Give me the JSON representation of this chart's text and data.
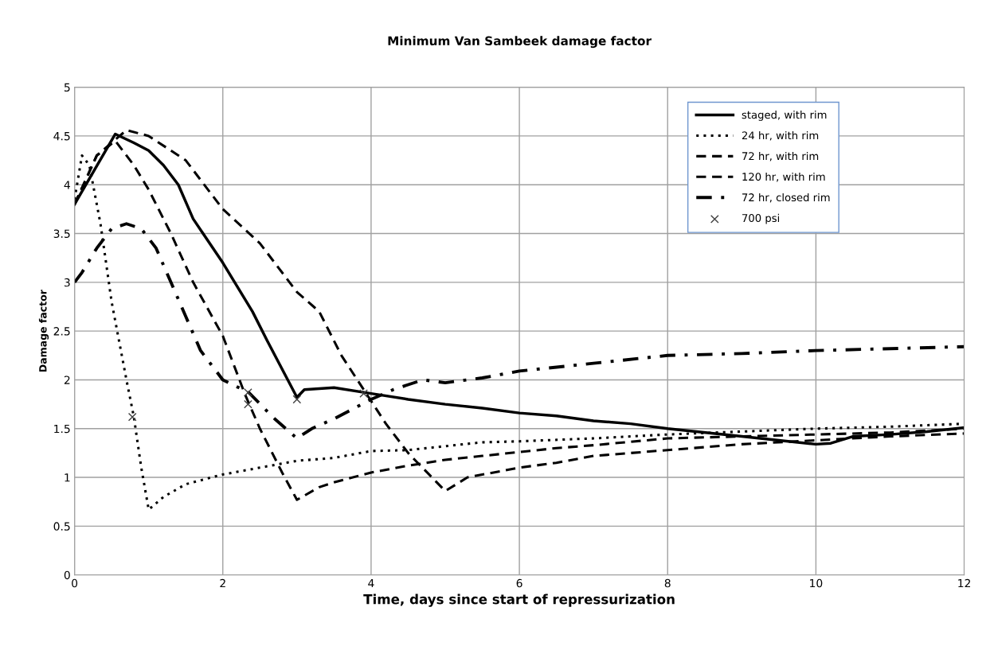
{
  "chart_data": {
    "type": "line",
    "title": "Minimum Van Sambeek damage factor",
    "xlabel": "Time, days since start of repressurization",
    "ylabel": "Damage factor",
    "xlim": [
      0,
      12
    ],
    "xticks": [
      0,
      2,
      4,
      6,
      8,
      10,
      12
    ],
    "ylim": [
      0,
      5
    ],
    "yticks": [
      0,
      0.5,
      1,
      1.5,
      2,
      2.5,
      3,
      3.5,
      4,
      4.5,
      5
    ],
    "grid": true,
    "legend": "top right",
    "series": [
      {
        "name": "staged, with rim",
        "color": "#000000",
        "line_style": "solid",
        "x": [
          0,
          0.55,
          0.8,
          1.0,
          1.2,
          1.4,
          1.6,
          2.0,
          2.4,
          2.6,
          3.0,
          3.1,
          3.5,
          4.0,
          4.5,
          5.0,
          5.5,
          6.0,
          6.5,
          7.0,
          7.5,
          8.0,
          9.0,
          9.5,
          10.0,
          10.2,
          10.5,
          11,
          11.5,
          12
        ],
        "values": [
          3.8,
          4.52,
          4.43,
          4.35,
          4.2,
          4.0,
          3.65,
          3.2,
          2.7,
          2.4,
          1.82,
          1.9,
          1.92,
          1.86,
          1.8,
          1.75,
          1.71,
          1.66,
          1.63,
          1.58,
          1.55,
          1.5,
          1.42,
          1.38,
          1.34,
          1.35,
          1.42,
          1.44,
          1.47,
          1.51
        ]
      },
      {
        "name": "24 hr, with rim",
        "color": "#000000",
        "line_style": "dotted",
        "x": [
          0,
          0.1,
          0.2,
          0.35,
          0.5,
          0.7,
          0.8,
          0.9,
          1.0,
          1.2,
          1.5,
          2.0,
          2.5,
          3.0,
          3.5,
          4.0,
          4.5,
          5.0,
          5.5,
          6,
          7,
          8,
          9,
          10,
          11,
          12
        ],
        "values": [
          3.85,
          4.3,
          4.2,
          3.6,
          2.8,
          2.0,
          1.62,
          1.1,
          0.67,
          0.8,
          0.93,
          1.03,
          1.1,
          1.17,
          1.2,
          1.27,
          1.28,
          1.32,
          1.36,
          1.37,
          1.4,
          1.44,
          1.47,
          1.5,
          1.52,
          1.55
        ]
      },
      {
        "name": "72 hr, with rim",
        "color": "#000000",
        "line_style": "dashed",
        "x": [
          0,
          0.3,
          0.55,
          0.8,
          1.0,
          1.3,
          1.6,
          2.0,
          2.3,
          2.5,
          2.8,
          3.0,
          3.3,
          3.5,
          4.0,
          4.5,
          5.0,
          5.5,
          6.0,
          6.5,
          7.0,
          8.0,
          9.0,
          10,
          11,
          12
        ],
        "values": [
          3.8,
          4.3,
          4.45,
          4.2,
          3.95,
          3.5,
          3.0,
          2.45,
          1.85,
          1.5,
          1.05,
          0.77,
          0.9,
          0.95,
          1.05,
          1.12,
          1.18,
          1.22,
          1.26,
          1.3,
          1.33,
          1.4,
          1.42,
          1.44,
          1.46,
          1.5
        ]
      },
      {
        "name": "120 hr, with rim",
        "color": "#000000",
        "line_style": "dashed",
        "x": [
          0,
          0.3,
          0.7,
          1.0,
          1.5,
          2.0,
          2.5,
          3.0,
          3.3,
          3.6,
          3.9,
          4.2,
          4.5,
          5.0,
          5.3,
          6.0,
          6.5,
          7.0,
          8.0,
          9.0,
          10,
          11,
          12
        ],
        "values": [
          3.8,
          4.3,
          4.56,
          4.5,
          4.25,
          3.75,
          3.4,
          2.9,
          2.7,
          2.25,
          1.9,
          1.55,
          1.25,
          0.86,
          1.0,
          1.1,
          1.15,
          1.22,
          1.28,
          1.34,
          1.38,
          1.42,
          1.45
        ]
      },
      {
        "name": "72 hr, closed rim",
        "color": "#000000",
        "line_style": "dashdot",
        "x": [
          0,
          0.1,
          0.3,
          0.5,
          0.7,
          0.9,
          1.1,
          1.3,
          1.5,
          1.7,
          2.0,
          2.35,
          2.7,
          3.0,
          3.2,
          3.5,
          4.0,
          4.3,
          4.7,
          5.0,
          5.5,
          6.0,
          7.0,
          8.0,
          9.0,
          10,
          11,
          12
        ],
        "values": [
          3.0,
          3.1,
          3.35,
          3.55,
          3.6,
          3.55,
          3.35,
          3.0,
          2.65,
          2.3,
          2.0,
          1.87,
          1.6,
          1.4,
          1.5,
          1.6,
          1.8,
          1.9,
          2.0,
          1.97,
          2.02,
          2.09,
          2.17,
          2.25,
          2.27,
          2.3,
          2.32,
          2.34
        ]
      },
      {
        "name": "700 psi",
        "type": "scatter",
        "marker": "cross",
        "color": "#404040",
        "x": [
          0.78,
          2.34,
          2.34,
          3.0,
          3.9
        ],
        "values": [
          1.62,
          1.75,
          1.87,
          1.8,
          1.86
        ]
      }
    ]
  }
}
